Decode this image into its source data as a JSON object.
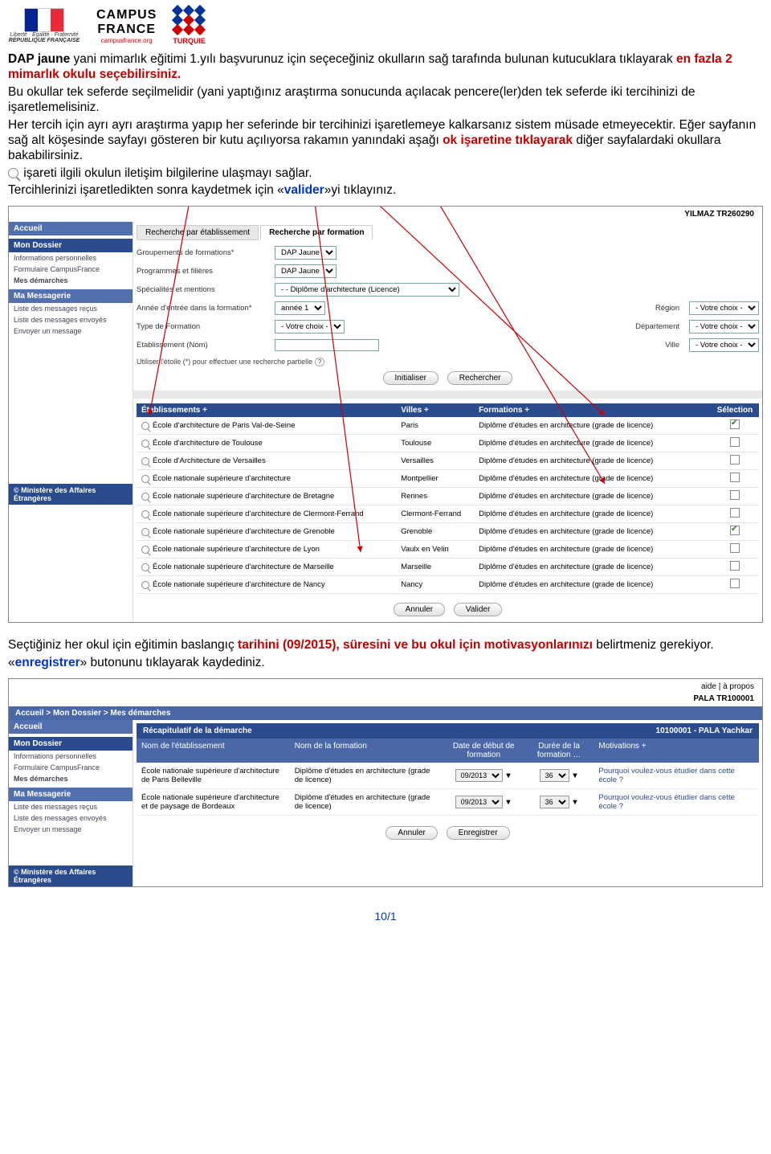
{
  "header": {
    "rf_motto": "Liberté · Égalité · Fraternité",
    "rf_name": "RÉPUBLIQUE FRANÇAISE",
    "cf_top": "CAMPUS",
    "cf_bot": "FRANCE",
    "cf_sub": "campusfrance.org",
    "turquie": "TURQUIE"
  },
  "para": {
    "p1a": "DAP jaune",
    "p1b": " yani mimarlık eğitimi 1.yılı başvurunuz için seçeceğiniz okulların sağ tarafında bulunan kutucuklara tıklayarak ",
    "p1c": "en fazla 2 mimarlık okulu seçebilirsiniz.",
    "p2": "Bu okullar tek seferde seçilmelidir (yani yaptığınız araştırma sonucunda açılacak pencere(ler)den tek seferde iki tercihinizi de işaretlemelisiniz.",
    "p3": "Her tercih için ayrı ayrı araştırma yapıp her seferinde bir tercihinizi işaretlemeye kalkarsanız sistem müsade etmeyecektir. Eğer sayfanın sağ alt köşesinde sayfayı gösteren bir kutu açılıyorsa rakamın yanındaki aşağı ",
    "p3b": "ok işaretine tıklayarak",
    "p3c": " diğer sayfalardaki okullara bakabilirsiniz.",
    "p4": " işareti ilgili okulun iletişim bilgilerine ulaşmayı sağlar.",
    "p5a": "Tercihlerinizi işaretledikten sonra kaydetmek için «",
    "p5b": "valider",
    "p5c": "»yi tıklayınız."
  },
  "sc1": {
    "user": "YILMAZ   TR260290",
    "nav": {
      "accueil": "Accueil",
      "dossier": "Mon Dossier",
      "d1": "Informations personnelles",
      "d2": "Formulaire CampusFrance",
      "d3": "Mes démarches",
      "messagerie": "Ma Messagerie",
      "m1": "Liste des messages reçus",
      "m2": "Liste des messages envoyés",
      "m3": "Envoyer un message",
      "ministere": "© Ministère des Affaires Étrangères"
    },
    "tabs": {
      "t1": "Recherche par établissement",
      "t2": "Recherche par formation"
    },
    "form": {
      "groupements": "Groupements de formations*",
      "groupements_v": "DAP Jaune",
      "programmes": "Programmes et filières",
      "programmes_v": "DAP Jaune",
      "specialites": "Spécialités et mentions",
      "specialites_v": "- - Diplôme d'architecture (Licence)",
      "annee": "Année d'entrée dans la formation*",
      "annee_v": "année 1",
      "region": "Région",
      "region_v": "- Votre choix -",
      "type": "Type de Formation",
      "type_v": "- Votre choix -",
      "dep": "Département",
      "dep_v": "- Votre choix -",
      "etab": "Etablissement (Nom)",
      "ville": "Ville",
      "ville_v": "- Votre choix -",
      "hint": "Utiliser l'étoile (*) pour effectuer une recherche partielle",
      "init": "Initialiser",
      "rech": "Rechercher"
    },
    "cols": {
      "c1": "Établissements  +",
      "c2": "Villes  +",
      "c3": "Formations  +",
      "c4": "Sélection"
    },
    "rows": [
      {
        "name": "École d'architecture de Paris Val-de-Seine",
        "city": "Paris",
        "form": "Diplôme d'études en architecture (grade de licence)",
        "checked": true
      },
      {
        "name": "École d'architecture de Toulouse",
        "city": "Toulouse",
        "form": "Diplôme d'études en architecture (grade de licence)",
        "checked": false
      },
      {
        "name": "École d'Architecture de Versailles",
        "city": "Versailles",
        "form": "Diplôme d'études en architecture (grade de licence)",
        "checked": false
      },
      {
        "name": "École nationale supérieure d'architecture",
        "city": "Montpellier",
        "form": "Diplôme d'études en architecture (grade de licence)",
        "checked": false
      },
      {
        "name": "École nationale supérieure d'architecture de Bretagne",
        "city": "Rennes",
        "form": "Diplôme d'études en architecture (grade de licence)",
        "checked": false
      },
      {
        "name": "École nationale supérieure d'architecture de Clermont-Ferrand",
        "city": "Clermont-Ferrand",
        "form": "Diplôme d'études en architecture (grade de licence)",
        "checked": false
      },
      {
        "name": "École nationale supérieure d'architecture de Grenoble",
        "city": "Grenoble",
        "form": "Diplôme d'études en architecture (grade de licence)",
        "checked": true
      },
      {
        "name": "École nationale supérieure d'architecture de Lyon",
        "city": "Vaulx en Velin",
        "form": "Diplôme d'études en architecture (grade de licence)",
        "checked": false
      },
      {
        "name": "École nationale supérieure d'architecture de Marseille",
        "city": "Marseille",
        "form": "Diplôme d'études en architecture (grade de licence)",
        "checked": false
      },
      {
        "name": "École nationale supérieure d'architecture de Nancy",
        "city": "Nancy",
        "form": "Diplôme d'études en architecture (grade de licence)",
        "checked": false
      }
    ],
    "annuler": "Annuler",
    "valider": "Valider"
  },
  "para2": {
    "a": "Seçtiğiniz her okul için eğitimin baslangıç ",
    "b": "tarihini (09/2015), süresini ve bu okul için motivasyonlarınızı",
    "c": " belirtmeniz gerekiyor.",
    "d": "«",
    "e": "enregistrer",
    "f": "» butonunu tıklayarak kaydediniz."
  },
  "sc2": {
    "aide": "aide  |  à propos",
    "user": "PALA   TR100001",
    "breadcrumb": "Accueil > Mon Dossier > Mes démarches",
    "nav": {
      "accueil": "Accueil",
      "dossier": "Mon Dossier",
      "d1": "Informations personnelles",
      "d2": "Formulaire CampusFrance",
      "d3": "Mes démarches",
      "messagerie": "Ma Messagerie",
      "m1": "Liste des messages reçus",
      "m2": "Liste des messages envoyés",
      "m3": "Envoyer un message",
      "ministere": "© Ministère des Affaires Étrangères"
    },
    "recap": {
      "title": "Récapitulatif de la démarche",
      "code": "10100001 - PALA Yachkar",
      "h1": "Nom de l'établissement",
      "h2": "Nom de la formation",
      "h3": "Date de début de formation",
      "h4": "Durée de la formation …",
      "h5": "Motivations  +"
    },
    "rows": [
      {
        "etab": "École nationale supérieure d'architecture de Paris Belleville",
        "form": "Diplôme d'études en architecture (grade de licence)",
        "date": "09/2013",
        "dur": "36",
        "mot": "Pourquoi voulez-vous étudier dans cette école ?"
      },
      {
        "etab": "École nationale supérieure d'architecture et de paysage de Bordeaux",
        "form": "Diplôme d'études en architecture (grade de licence)",
        "date": "09/2013",
        "dur": "36",
        "mot": "Pourquoi voulez-vous étudier dans cette école ?"
      }
    ],
    "annuler": "Annuler",
    "enreg": "Enregistrer"
  },
  "page_num": "10/1"
}
